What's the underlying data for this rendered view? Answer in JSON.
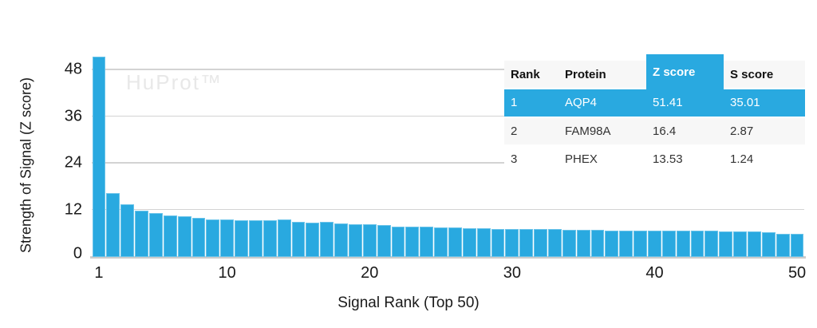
{
  "watermark": "HuProt™",
  "colors": {
    "bar": "#29a9e0",
    "table_highlight": "#29a9e0",
    "gridline": "#d3d3d3",
    "baseline": "#cccccc",
    "watermark": "#e8e8e8",
    "zebra_row": "#f7f7f7",
    "text": "#1a1a1a"
  },
  "chart_data": {
    "type": "bar",
    "title": "",
    "xlabel": "Signal Rank (Top 50)",
    "ylabel": "Strength of Signal (Z score)",
    "x_range": [
      1,
      50
    ],
    "values": [
      51.41,
      16.4,
      13.53,
      12.0,
      11.2,
      10.7,
      10.5,
      10.0,
      9.7,
      9.6,
      9.5,
      9.5,
      9.5,
      9.6,
      9.1,
      8.9,
      9.0,
      8.6,
      8.4,
      8.4,
      8.3,
      7.9,
      7.9,
      7.7,
      7.6,
      7.6,
      7.4,
      7.4,
      7.2,
      7.2,
      7.1,
      7.1,
      7.1,
      7.0,
      6.9,
      7.0,
      6.8,
      6.7,
      6.7,
      6.8,
      6.8,
      6.8,
      6.7,
      6.7,
      6.6,
      6.6,
      6.5,
      6.3,
      5.9,
      6.0
    ],
    "yticks": [
      0,
      12,
      24,
      36,
      48
    ],
    "xticks": [
      1,
      10,
      20,
      30,
      40,
      50
    ],
    "ylim": [
      0,
      52
    ],
    "grid": true,
    "legend": "none",
    "bar_color": "#29a9e0"
  },
  "table": {
    "headers": [
      "Rank",
      "Protein",
      "Z score",
      "S score"
    ],
    "highlighted_column": "Z score",
    "rows": [
      {
        "rank": "1",
        "protein": "AQP4",
        "z_score": "51.41",
        "s_score": "35.01",
        "highlighted": true
      },
      {
        "rank": "2",
        "protein": "FAM98A",
        "z_score": "16.4",
        "s_score": "2.87",
        "highlighted": false
      },
      {
        "rank": "3",
        "protein": "PHEX",
        "z_score": "13.53",
        "s_score": "1.24",
        "highlighted": false
      }
    ]
  }
}
